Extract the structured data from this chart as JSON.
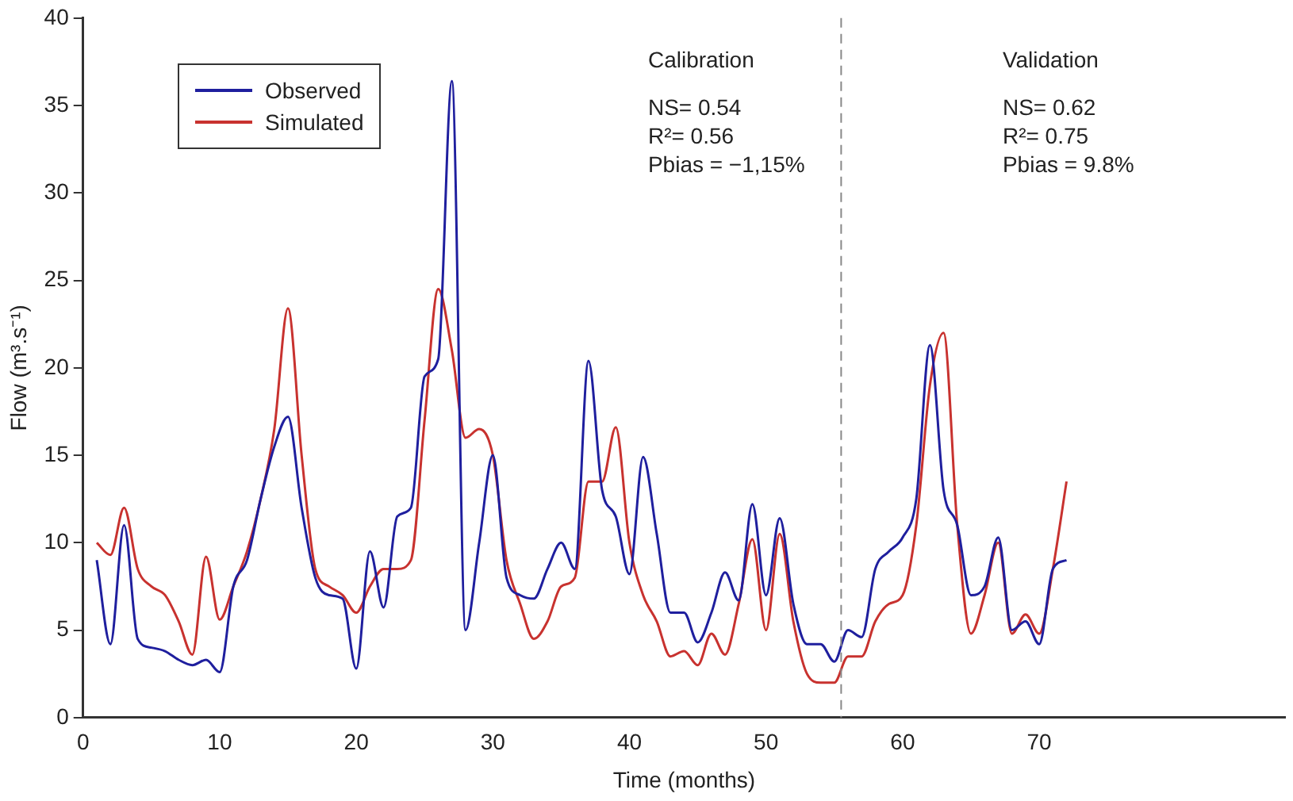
{
  "chart_data": {
    "type": "line",
    "xlabel": "Time (months)",
    "ylabel": "Flow (m³.s⁻¹)",
    "x": [
      1,
      2,
      3,
      4,
      5,
      6,
      7,
      8,
      9,
      10,
      11,
      12,
      13,
      14,
      15,
      16,
      17,
      18,
      19,
      20,
      21,
      22,
      23,
      24,
      25,
      26,
      27,
      28,
      29,
      30,
      31,
      32,
      33,
      34,
      35,
      36,
      37,
      38,
      39,
      40,
      41,
      42,
      43,
      44,
      45,
      46,
      47,
      48,
      49,
      50,
      51,
      52,
      53,
      54,
      55,
      56,
      57,
      58,
      59,
      60,
      61,
      62,
      63,
      64,
      65,
      66,
      67,
      68,
      69,
      70,
      71,
      72
    ],
    "series": [
      {
        "name": "Observed",
        "color": "#1f1f9e",
        "values": [
          9,
          4.2,
          11,
          4.5,
          4,
          3.8,
          3.3,
          3,
          3.3,
          2.6,
          7.5,
          9,
          12.5,
          15.5,
          17.2,
          12,
          8,
          7,
          6.8,
          2.8,
          9.5,
          6.3,
          11.5,
          12,
          19.5,
          20.5,
          36.4,
          5,
          10,
          15,
          8,
          7,
          6.8,
          8.5,
          10,
          8.5,
          20.4,
          13,
          11.5,
          8.2,
          14.9,
          10.5,
          6,
          6,
          4.3,
          6,
          8.3,
          6.7,
          12.2,
          7,
          11.4,
          6.5,
          4.2,
          4.2,
          3.2,
          5,
          4.6,
          8.5,
          9.5,
          10.3,
          12.5,
          21.3,
          13,
          11,
          7,
          7.5,
          10.3,
          5,
          5.5,
          4.2,
          8.5,
          9
        ]
      },
      {
        "name": "Simulated",
        "color": "#c8322f",
        "values": [
          10,
          9.3,
          12,
          8.5,
          7.5,
          7,
          5.5,
          3.6,
          9.2,
          5.6,
          7.5,
          9.5,
          12.5,
          16.5,
          23.4,
          15,
          8.5,
          7.5,
          7,
          6,
          7.5,
          8.5,
          8.5,
          9,
          17,
          24.5,
          21,
          16,
          16.5,
          15,
          9,
          6.5,
          4.5,
          5.5,
          7.5,
          8,
          13.5,
          13.5,
          16.6,
          10,
          7,
          5.5,
          3.5,
          3.8,
          3,
          4.8,
          3.6,
          6.5,
          10.2,
          5,
          10.5,
          5.5,
          2.5,
          2,
          2,
          3.5,
          3.5,
          5.5,
          6.5,
          7,
          11,
          19,
          22,
          11,
          4.8,
          7,
          10,
          4.8,
          5.9,
          4.8,
          8.5,
          13.5
        ]
      }
    ],
    "xlim": [
      0,
      88
    ],
    "xticks": [
      0,
      10,
      20,
      30,
      40,
      50,
      60,
      70
    ],
    "ylim": [
      0,
      40
    ],
    "yticks": [
      0,
      5,
      10,
      15,
      20,
      25,
      30,
      35,
      40
    ],
    "grid": false,
    "legend": "top left",
    "marker": "none",
    "line_style": "solid",
    "ref_lines": [
      {
        "axis": "x",
        "value": 55.5,
        "color": "#888888",
        "line_style": "dashed"
      }
    ],
    "annotations": [
      "Calibration",
      "NS= 0.54",
      "R²= 0.56",
      "Pbias = −1,15%",
      "Validation",
      "NS= 0.62",
      "R²= 0.75",
      "Pbias = 9.8%"
    ]
  }
}
